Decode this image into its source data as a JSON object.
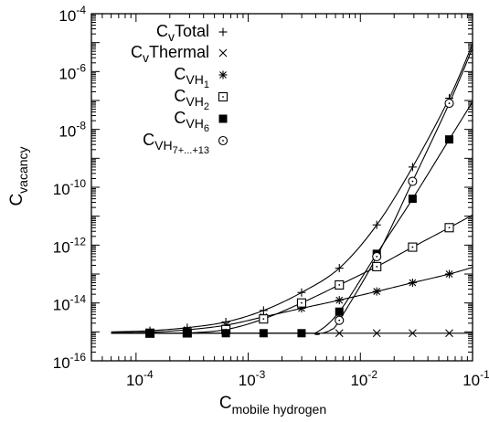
{
  "chart_data": {
    "type": "scatter",
    "title": "",
    "x_axis": {
      "label": "C",
      "label_subscript": "mobile hydrogen",
      "scale": "log",
      "range": [
        4e-05,
        0.1
      ],
      "ticks": [
        {
          "value": 0.0001,
          "base": "10",
          "exp": "-4"
        },
        {
          "value": 0.001,
          "base": "10",
          "exp": "-3"
        },
        {
          "value": 0.01,
          "base": "10",
          "exp": "-2"
        },
        {
          "value": 0.1,
          "base": "10",
          "exp": "-1"
        }
      ]
    },
    "y_axis": {
      "label": "C",
      "label_subscript": "vacancy",
      "scale": "log",
      "range": [
        1e-16,
        0.0001
      ],
      "ticks": [
        {
          "value": 1e-16,
          "base": "10",
          "exp": "-16"
        },
        {
          "value": 1e-14,
          "base": "10",
          "exp": "-14"
        },
        {
          "value": 1e-12,
          "base": "10",
          "exp": "-12"
        },
        {
          "value": 1e-10,
          "base": "10",
          "exp": "-10"
        },
        {
          "value": 1e-08,
          "base": "10",
          "exp": "-8"
        },
        {
          "value": 1e-06,
          "base": "10",
          "exp": "-6"
        },
        {
          "value": 0.0001,
          "base": "10",
          "exp": "-4"
        }
      ]
    },
    "legend_position": "top-left",
    "grid": false,
    "series": [
      {
        "key": "total",
        "marker": "plus",
        "legend": {
          "base": "C",
          "sub1": "v",
          "rest": "Total",
          "sub2": ""
        },
        "points": [
          [
            0.000133,
            1.1e-15
          ],
          [
            0.000286,
            1.4e-15
          ],
          [
            0.000632,
            2.2e-15
          ],
          [
            0.00137,
            5.5e-15
          ],
          [
            0.00299,
            2.3e-14
          ],
          [
            0.00649,
            1.6e-13
          ],
          [
            0.014,
            5e-12
          ],
          [
            0.0292,
            5e-10
          ],
          [
            0.062,
            1.2e-07
          ]
        ],
        "curve": [
          [
            6e-05,
            1e-15
          ],
          [
            0.000133,
            1.1e-15
          ],
          [
            0.000286,
            1.4e-15
          ],
          [
            0.000632,
            2.2e-15
          ],
          [
            0.00137,
            5.5e-15
          ],
          [
            0.00299,
            2.3e-14
          ],
          [
            0.00649,
            1.6e-13
          ],
          [
            0.014,
            5e-12
          ],
          [
            0.0292,
            5e-10
          ],
          [
            0.062,
            1.2e-07
          ],
          [
            0.1,
            9e-06
          ]
        ]
      },
      {
        "key": "thermal",
        "marker": "cross",
        "legend": {
          "base": "C",
          "sub1": "v",
          "rest": "Thermal",
          "sub2": ""
        },
        "points": [
          [
            0.000133,
            9e-16
          ],
          [
            0.000286,
            9e-16
          ],
          [
            0.000632,
            9e-16
          ],
          [
            0.00137,
            9e-16
          ],
          [
            0.00299,
            9e-16
          ],
          [
            0.00649,
            9e-16
          ],
          [
            0.014,
            9e-16
          ],
          [
            0.0292,
            9e-16
          ],
          [
            0.062,
            9e-16
          ]
        ],
        "curve": [
          [
            6e-05,
            9e-16
          ],
          [
            0.1,
            9e-16
          ]
        ]
      },
      {
        "key": "vh1",
        "marker": "asterisk",
        "legend": {
          "base": "C",
          "sub1": "VH",
          "rest": "",
          "sub2": "1"
        },
        "points": [
          [
            0.000133,
            9.8e-16
          ],
          [
            0.000286,
            1.18e-15
          ],
          [
            0.000632,
            1.7e-15
          ],
          [
            0.00137,
            3.3e-15
          ],
          [
            0.00299,
            6.5e-15
          ],
          [
            0.00649,
            1.25e-14
          ],
          [
            0.014,
            2.5e-14
          ],
          [
            0.0292,
            5e-14
          ],
          [
            0.062,
            1e-13
          ]
        ],
        "curve": [
          [
            6e-05,
            9.4e-16
          ],
          [
            0.000133,
            9.8e-16
          ],
          [
            0.000286,
            1.18e-15
          ],
          [
            0.000632,
            1.7e-15
          ],
          [
            0.00137,
            3.3e-15
          ],
          [
            0.00299,
            6.5e-15
          ],
          [
            0.00649,
            1.25e-14
          ],
          [
            0.014,
            2.5e-14
          ],
          [
            0.0292,
            5e-14
          ],
          [
            0.062,
            1e-13
          ],
          [
            0.1,
            1.7e-13
          ]
        ]
      },
      {
        "key": "vh2",
        "marker": "square-dot",
        "legend": {
          "base": "C",
          "sub1": "VH",
          "rest": "",
          "sub2": "2"
        },
        "points": [
          [
            0.000133,
            9e-16
          ],
          [
            0.000286,
            9.2e-16
          ],
          [
            0.000632,
            1.2e-15
          ],
          [
            0.00137,
            2.8e-15
          ],
          [
            0.00299,
            1e-14
          ],
          [
            0.00649,
            4.2e-14
          ],
          [
            0.014,
            1.8e-13
          ],
          [
            0.0292,
            8.5e-13
          ],
          [
            0.062,
            4e-12
          ]
        ],
        "curve": [
          [
            6e-05,
            9e-16
          ],
          [
            0.000133,
            9e-16
          ],
          [
            0.000286,
            9.2e-16
          ],
          [
            0.000632,
            1.2e-15
          ],
          [
            0.00137,
            2.8e-15
          ],
          [
            0.00299,
            1e-14
          ],
          [
            0.00649,
            4.2e-14
          ],
          [
            0.014,
            1.8e-13
          ],
          [
            0.0292,
            8.5e-13
          ],
          [
            0.062,
            4e-12
          ],
          [
            0.1,
            1.1e-11
          ]
        ]
      },
      {
        "key": "vh6",
        "marker": "filled-square",
        "legend": {
          "base": "C",
          "sub1": "VH",
          "rest": "",
          "sub2": "6"
        },
        "points": [
          [
            0.000133,
            9e-16
          ],
          [
            0.000286,
            9e-16
          ],
          [
            0.000632,
            9e-16
          ],
          [
            0.00137,
            9e-16
          ],
          [
            0.00299,
            9e-16
          ],
          [
            0.00649,
            5e-15
          ],
          [
            0.014,
            5e-13
          ],
          [
            0.0292,
            4e-11
          ],
          [
            0.062,
            4.5e-09
          ]
        ],
        "curve": [
          [
            6e-05,
            9e-16
          ],
          [
            0.00299,
            9e-16
          ],
          [
            0.004,
            9.3e-16
          ],
          [
            0.00649,
            5e-15
          ],
          [
            0.014,
            5e-13
          ],
          [
            0.0292,
            4e-11
          ],
          [
            0.062,
            4.5e-09
          ],
          [
            0.1,
            9e-08
          ]
        ]
      },
      {
        "key": "vh7_13",
        "marker": "circle-dot",
        "legend": {
          "base": "C",
          "sub1": "VH",
          "rest": "",
          "sub2": "7+...+13"
        },
        "points": [
          [
            0.00649,
            2.5e-15
          ],
          [
            0.014,
            4e-13
          ],
          [
            0.0292,
            1.6e-10
          ],
          [
            0.062,
            8e-08
          ]
        ],
        "curve": [
          [
            0.0046,
            9e-16
          ],
          [
            0.0055,
            1.2e-15
          ],
          [
            0.00649,
            2.5e-15
          ],
          [
            0.014,
            4e-13
          ],
          [
            0.0292,
            1.6e-10
          ],
          [
            0.062,
            8e-08
          ],
          [
            0.1,
            6.5e-06
          ]
        ]
      }
    ]
  }
}
